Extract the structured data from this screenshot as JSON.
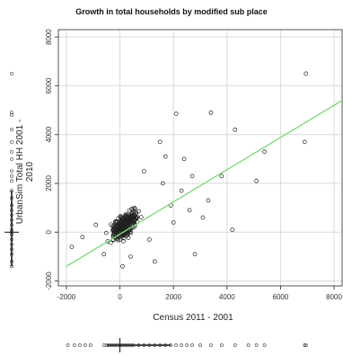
{
  "chart_data": {
    "type": "scatter",
    "title": "Growth in total households by modified sub place",
    "xlabel": "Census 2011 - 2001",
    "ylabel": "UrbanSim Total HH 2001 - 2010",
    "xlim": [
      -2300,
      8300
    ],
    "ylim": [
      -2200,
      8300
    ],
    "x_ticks": [
      -2000,
      0,
      2000,
      4000,
      6000,
      8000
    ],
    "y_ticks": [
      -2000,
      0,
      2000,
      4000,
      6000,
      8000
    ],
    "grid": true,
    "fit_line": {
      "x": [
        -2000,
        8300
      ],
      "y": [
        -1400,
        5400
      ],
      "color": "#7ddc7d"
    },
    "outliers": [
      {
        "x": 6950,
        "y": 6500
      },
      {
        "x": 3400,
        "y": 4900
      },
      {
        "x": 2100,
        "y": 4850
      },
      {
        "x": 4300,
        "y": 4200
      },
      {
        "x": 6900,
        "y": 3700
      },
      {
        "x": 1500,
        "y": 3700
      },
      {
        "x": 2400,
        "y": 3000
      },
      {
        "x": 5400,
        "y": 3300
      },
      {
        "x": 3800,
        "y": 2300
      },
      {
        "x": 2700,
        "y": 2300
      },
      {
        "x": 5100,
        "y": 2100
      },
      {
        "x": 4200,
        "y": 100
      },
      {
        "x": 2800,
        "y": -900
      },
      {
        "x": 1300,
        "y": -1200
      },
      {
        "x": 100,
        "y": -1400
      },
      {
        "x": -1800,
        "y": -600
      },
      {
        "x": -1400,
        "y": -200
      },
      {
        "x": -900,
        "y": 300
      },
      {
        "x": 1900,
        "y": 1100
      },
      {
        "x": 2600,
        "y": 900
      },
      {
        "x": 3300,
        "y": 1300
      },
      {
        "x": 900,
        "y": 2500
      },
      {
        "x": 1600,
        "y": 2000
      },
      {
        "x": 3100,
        "y": 600
      },
      {
        "x": 2000,
        "y": 400
      },
      {
        "x": 1100,
        "y": -300
      },
      {
        "x": -600,
        "y": -900
      },
      {
        "x": 400,
        "y": -1000
      },
      {
        "x": 1700,
        "y": 3100
      },
      {
        "x": 2300,
        "y": 1700
      }
    ],
    "cluster": {
      "center": [
        200,
        300
      ],
      "count": 300,
      "spread_x": 420,
      "spread_y": 520
    },
    "rug_x": [
      -1950,
      -1700,
      -1500,
      -1300,
      -1100,
      -600,
      -500,
      -400,
      -300,
      -200,
      -100,
      0,
      100,
      200,
      300,
      400,
      500,
      700,
      900,
      1100,
      1300,
      1500,
      1700,
      1900,
      2100,
      2300,
      2500,
      2700,
      3000,
      3400,
      3800,
      4300,
      4800,
      5100,
      5400,
      6900,
      6950
    ],
    "rug_y": [
      6500,
      4900,
      4800,
      4200,
      3700,
      3300,
      3000,
      2500,
      2300,
      2100,
      1700,
      1400,
      1100,
      900,
      700,
      500,
      300,
      100,
      0,
      -100,
      -300,
      -500,
      -700,
      -900,
      -1200,
      -1400
    ]
  }
}
